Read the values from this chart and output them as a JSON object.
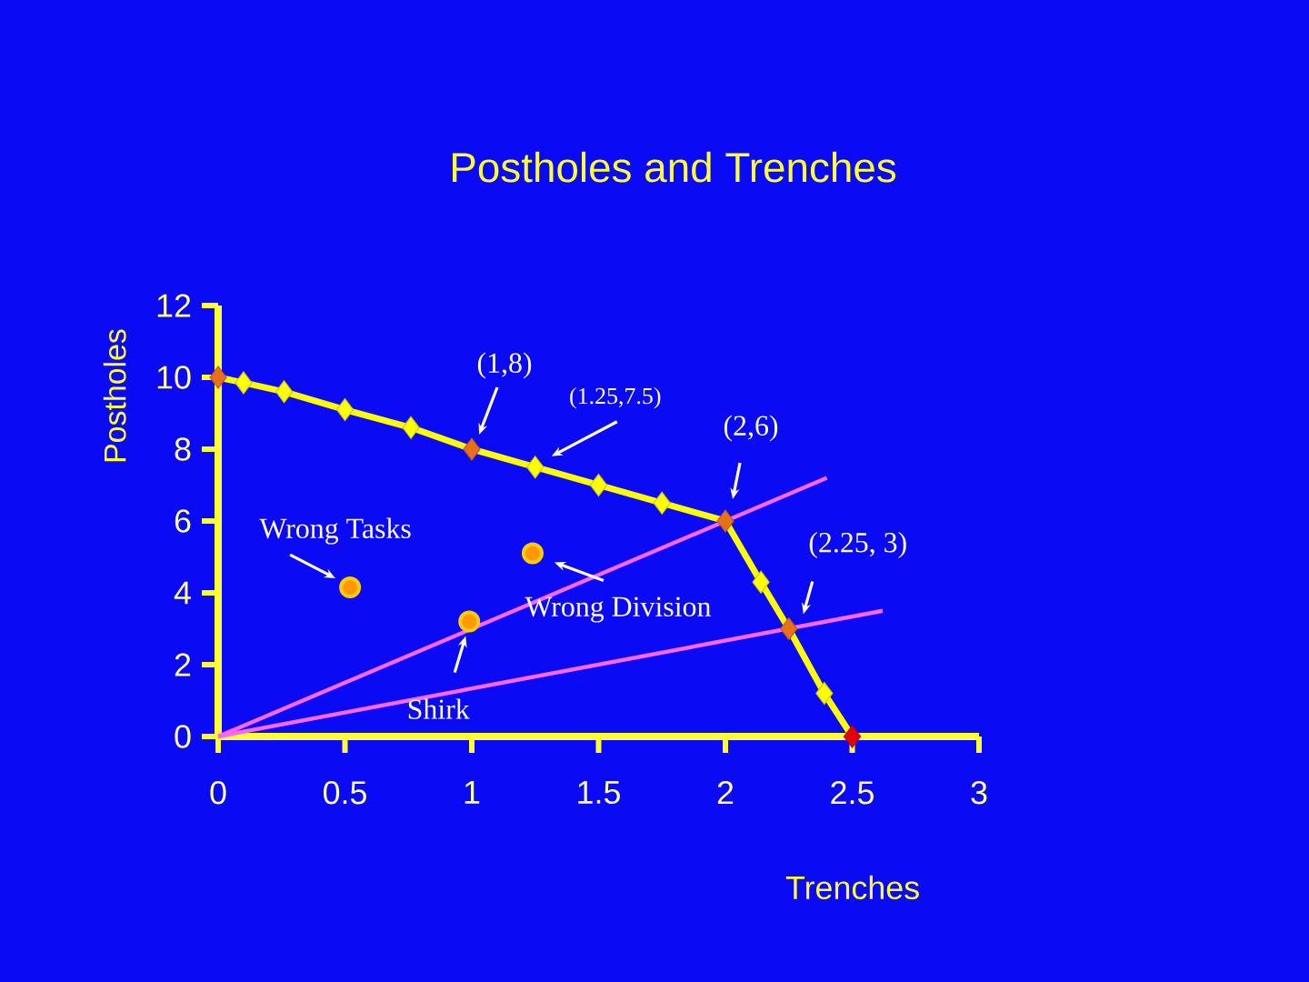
{
  "chart_data": {
    "type": "line",
    "title": "Postholes and Trenches",
    "xlabel": "Trenches",
    "ylabel": "Postholes",
    "xlim": [
      0,
      3
    ],
    "ylim": [
      0,
      12
    ],
    "xticks": [
      0,
      0.5,
      1,
      1.5,
      2,
      2.5,
      3
    ],
    "yticks": [
      0,
      2,
      4,
      6,
      8,
      10,
      12
    ],
    "series": [
      {
        "color": "#ffff00",
        "marker": "diamond",
        "x": [
          0,
          0.1,
          0.26,
          0.5,
          0.76,
          1,
          1.25,
          1.5,
          1.75,
          2,
          2.14,
          2.25,
          2.39,
          2.5
        ],
        "values": [
          10,
          9.85,
          9.6,
          9.1,
          8.6,
          8,
          7.5,
          7,
          6.5,
          6,
          4.3,
          3,
          1.2,
          0
        ],
        "colors": [
          "#e8701a",
          "#ffff00",
          "#ffff00",
          "#ffff00",
          "#ffff00",
          "#e8701a",
          "#ffff00",
          "#ffff00",
          "#ffff00",
          "#e8701a",
          "#ffff00",
          "#e8701a",
          "#ffff00",
          "#e00000"
        ]
      },
      {
        "type": "scatter",
        "color": "#ffcc00",
        "marker": "circle",
        "x": [
          0.52,
          1.24,
          0.99
        ],
        "values": [
          4.15,
          5.1,
          3.2
        ]
      },
      {
        "type": "line",
        "color": "#ff66ff",
        "marker": "none",
        "x": [
          0,
          2.4
        ],
        "values": [
          0,
          7.2
        ]
      },
      {
        "type": "line",
        "color": "#ff66ff",
        "marker": "none",
        "x": [
          0,
          2.62
        ],
        "values": [
          0,
          3.5
        ]
      }
    ],
    "annotations": [
      {
        "text": "(1,8)",
        "x": 1,
        "y": 8
      },
      {
        "text": "(1.25,7.5)",
        "x": 1.25,
        "y": 7.5
      },
      {
        "text": "(2,6)",
        "x": 2,
        "y": 6
      },
      {
        "text": "(2.25, 3)",
        "x": 2.25,
        "y": 3
      },
      {
        "text": "Wrong Tasks",
        "x": 0.52,
        "y": 4.15
      },
      {
        "text": "Wrong Division",
        "x": 1.24,
        "y": 5.1
      },
      {
        "text": "Shirk",
        "x": 0.99,
        "y": 3.2
      }
    ]
  }
}
